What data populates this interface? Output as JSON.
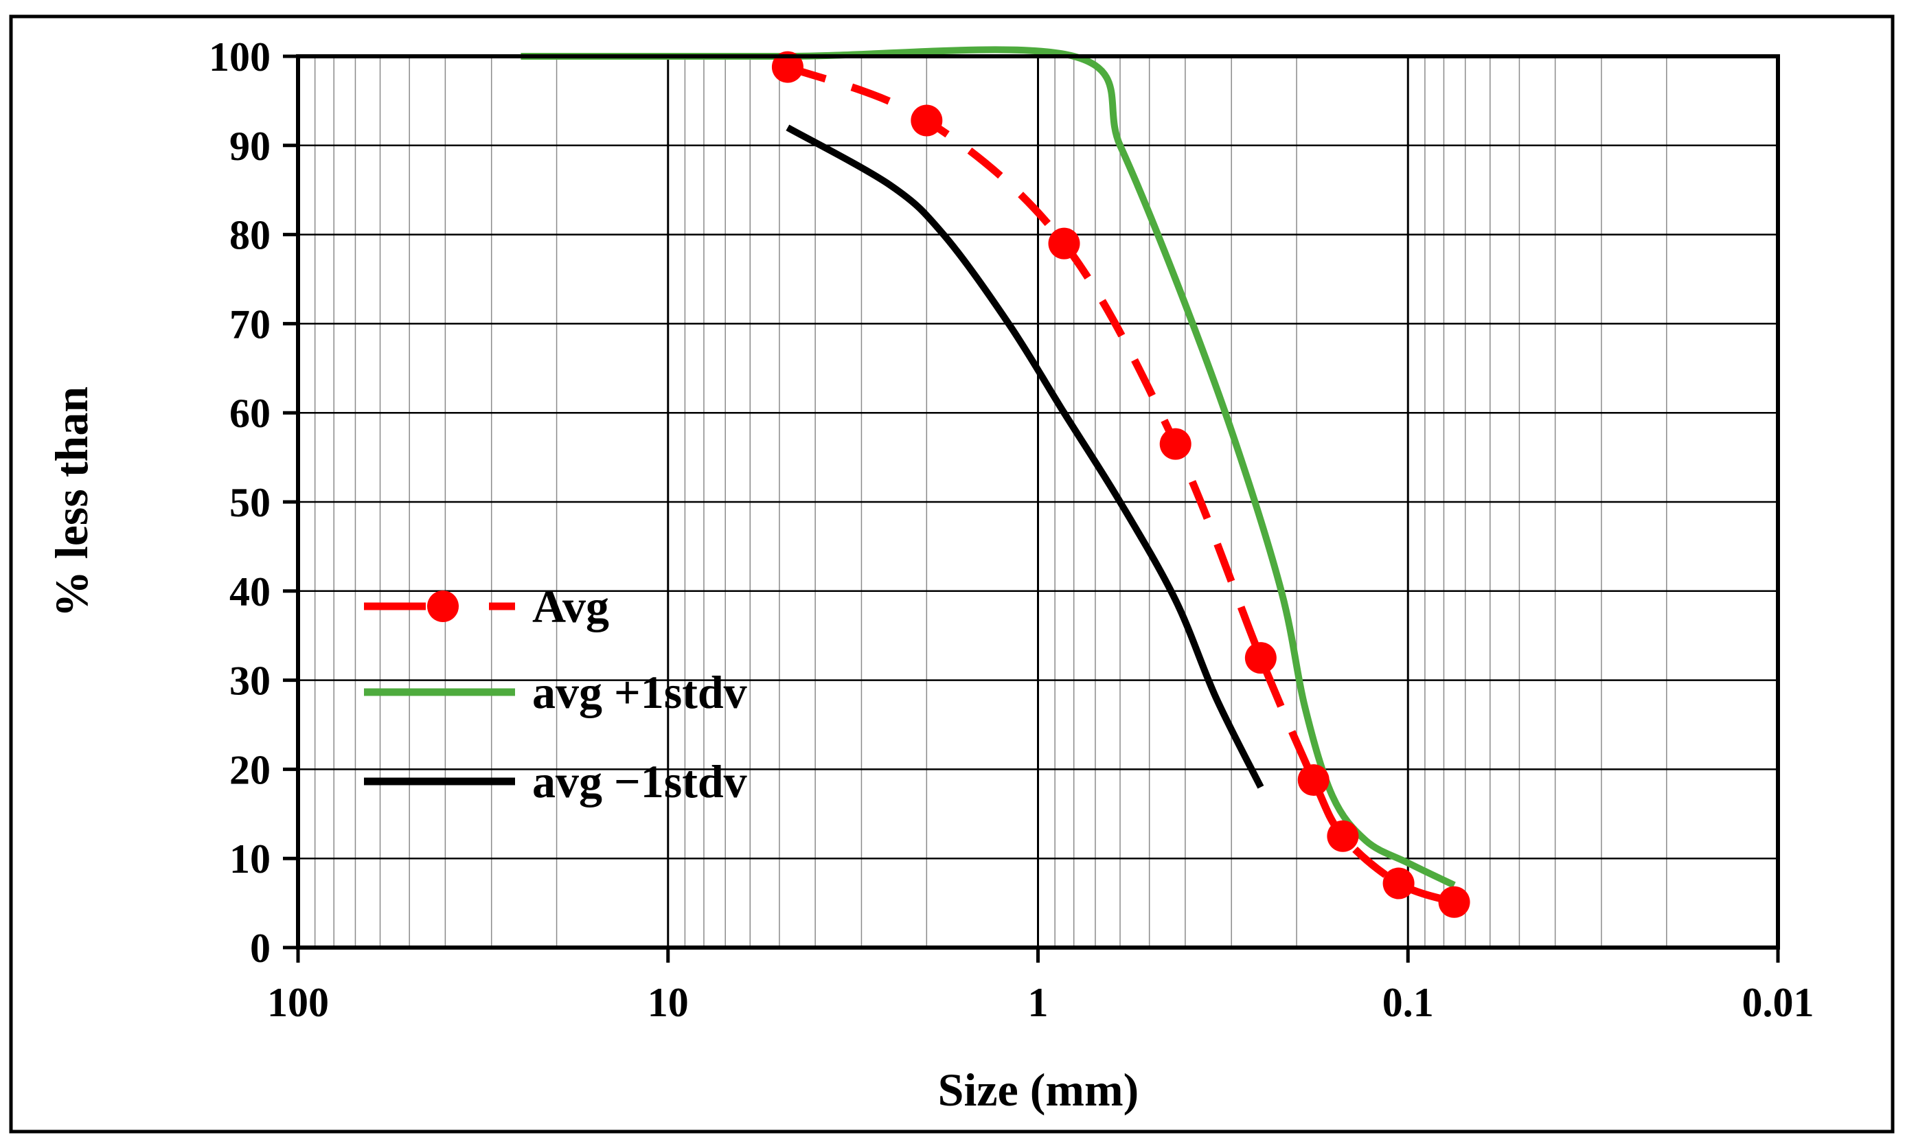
{
  "chart_data": {
    "type": "line",
    "title": "",
    "xlabel": "Size (mm)",
    "ylabel": "% less than",
    "x_scale": "log",
    "x_reversed": true,
    "xlim": [
      100,
      0.01
    ],
    "ylim": [
      0,
      100
    ],
    "x_ticks": [
      {
        "value": 100,
        "label": "100"
      },
      {
        "value": 10,
        "label": "10"
      },
      {
        "value": 1,
        "label": "1"
      },
      {
        "value": 0.1,
        "label": "0.1"
      },
      {
        "value": 0.01,
        "label": "0.01"
      }
    ],
    "y_ticks": [
      {
        "value": 0,
        "label": "0"
      },
      {
        "value": 10,
        "label": "10"
      },
      {
        "value": 20,
        "label": "20"
      },
      {
        "value": 30,
        "label": "30"
      },
      {
        "value": 40,
        "label": "40"
      },
      {
        "value": 50,
        "label": "50"
      },
      {
        "value": 60,
        "label": "60"
      },
      {
        "value": 70,
        "label": "70"
      },
      {
        "value": 80,
        "label": "80"
      },
      {
        "value": 90,
        "label": "90"
      },
      {
        "value": 100,
        "label": "100"
      }
    ],
    "grid": true,
    "legend_position": "middle-left",
    "series": [
      {
        "name": "Avg",
        "color": "#ff0000",
        "style": "dashed",
        "markers": true,
        "points": [
          {
            "x": 4.75,
            "y": 98.8
          },
          {
            "x": 2.0,
            "y": 92.8
          },
          {
            "x": 0.85,
            "y": 79.0
          },
          {
            "x": 0.425,
            "y": 56.5
          },
          {
            "x": 0.25,
            "y": 32.5
          },
          {
            "x": 0.18,
            "y": 18.8
          },
          {
            "x": 0.15,
            "y": 12.5
          },
          {
            "x": 0.106,
            "y": 7.2
          },
          {
            "x": 0.075,
            "y": 5.1
          }
        ]
      },
      {
        "name": "avg +1stdv",
        "color": "#4eab3e",
        "style": "solid",
        "markers": false,
        "points": [
          {
            "x": 25.0,
            "y": 100.0
          },
          {
            "x": 4.75,
            "y": 100.0
          },
          {
            "x": 0.8,
            "y": 100.0
          },
          {
            "x": 0.6,
            "y": 90.0
          },
          {
            "x": 0.425,
            "y": 75.0
          },
          {
            "x": 0.3,
            "y": 58.0
          },
          {
            "x": 0.22,
            "y": 40.0
          },
          {
            "x": 0.19,
            "y": 27.0
          },
          {
            "x": 0.16,
            "y": 17.0
          },
          {
            "x": 0.13,
            "y": 12.0
          },
          {
            "x": 0.1,
            "y": 9.5
          },
          {
            "x": 0.075,
            "y": 7.0
          }
        ]
      },
      {
        "name": "avg −1stdv",
        "color": "#000000",
        "style": "solid",
        "markers": false,
        "points": [
          {
            "x": 4.75,
            "y": 92.0
          },
          {
            "x": 2.5,
            "y": 85.5
          },
          {
            "x": 1.8,
            "y": 80.0
          },
          {
            "x": 1.2,
            "y": 70.0
          },
          {
            "x": 0.85,
            "y": 60.0
          },
          {
            "x": 0.6,
            "y": 50.0
          },
          {
            "x": 0.425,
            "y": 39.0
          },
          {
            "x": 0.33,
            "y": 28.0
          },
          {
            "x": 0.25,
            "y": 18.0
          }
        ]
      }
    ]
  }
}
